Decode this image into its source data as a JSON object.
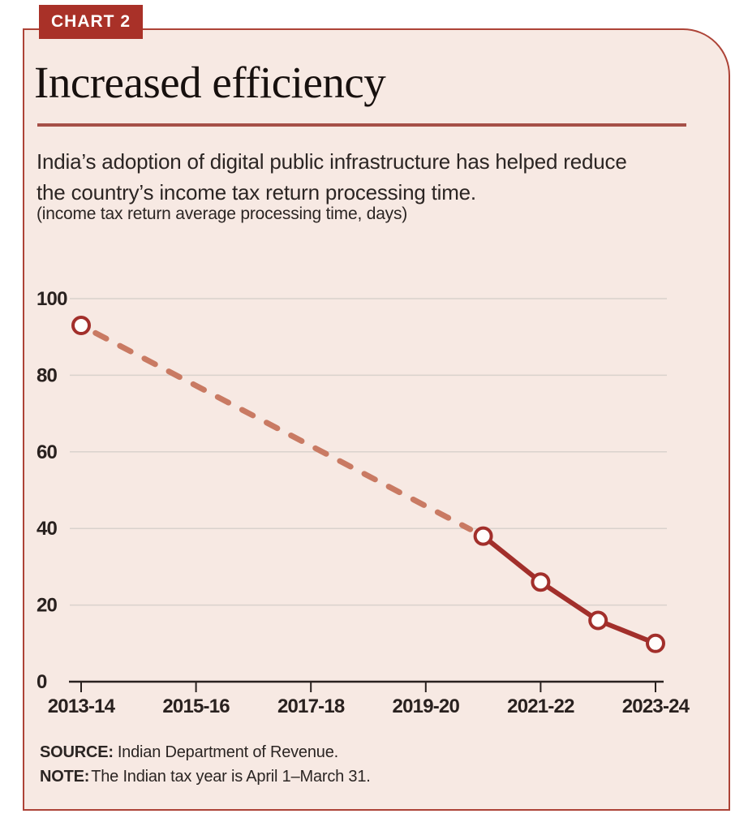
{
  "badge": {
    "label": "CHART 2"
  },
  "header": {
    "title": "Increased efficiency",
    "subtitle": "India’s adoption of digital public infrastructure has helped reduce the country’s income tax return processing time.",
    "unit_note": "(income tax return average processing time, days)"
  },
  "footer": {
    "source_label": "SOURCE:",
    "source_text": "Indian Department of Revenue.",
    "note_label": "NOTE:",
    "note_text": "The Indian tax year is April 1–March 31."
  },
  "colors": {
    "page_background": "#ffffff",
    "card_background": "#f7e9e3",
    "card_border": "#ad4337",
    "badge_background": "#a93128",
    "badge_text": "#ffffff",
    "title_text": "#17100e",
    "body_text": "#2b2523",
    "rule": "#a65048",
    "gridline": "#d9d2cd",
    "axis": "#29211f",
    "line_solid": "#a22f2b",
    "line_dashed": "#c97a63",
    "marker_fill": "#fffdfb"
  },
  "chart_data": {
    "type": "line",
    "title": "Increased efficiency",
    "subtitle": "(income tax return average processing time, days)",
    "xlabel": "",
    "ylabel": "days",
    "x_tick_labels": [
      "2013-14",
      "2015-16",
      "2017-18",
      "2019-20",
      "2021-22",
      "2023-24"
    ],
    "y_ticks": [
      0,
      20,
      40,
      60,
      80,
      100
    ],
    "ylim": [
      0,
      100
    ],
    "grid": true,
    "legend": false,
    "series": [
      {
        "name": "interpolated-dashed",
        "style": "dashed",
        "color": "#c97a63",
        "points": [
          {
            "year": "2013-14",
            "value": 93
          },
          {
            "year": "2020-21",
            "value": 38
          }
        ]
      },
      {
        "name": "recent-solid",
        "style": "solid",
        "color": "#a22f2b",
        "points": [
          {
            "year": "2020-21",
            "value": 38
          },
          {
            "year": "2021-22",
            "value": 26
          },
          {
            "year": "2022-23",
            "value": 16
          },
          {
            "year": "2023-24",
            "value": 10
          }
        ]
      }
    ]
  }
}
